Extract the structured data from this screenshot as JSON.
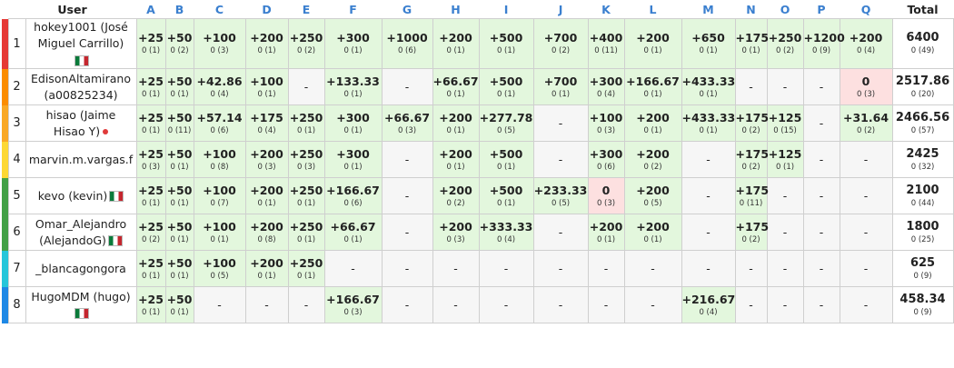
{
  "headers": {
    "user": "User",
    "problems": [
      "A",
      "B",
      "C",
      "D",
      "E",
      "F",
      "G",
      "H",
      "I",
      "J",
      "K",
      "L",
      "M",
      "N",
      "O",
      "P",
      "Q"
    ],
    "total": "Total"
  },
  "colors": {
    "stripes": [
      "#e53935",
      "#fb8c00",
      "#f9a825",
      "#fdd835",
      "#43a047",
      "#43a047",
      "#26c6da",
      "#1e88e5"
    ]
  },
  "rows": [
    {
      "rank": "1",
      "user_lines": [
        "hokey1001 (José",
        "Miguel Carrillo)"
      ],
      "badge": "mexico-flag",
      "cells": [
        {
          "p": "+25",
          "s": "0 (1)",
          "st": "ok"
        },
        {
          "p": "+50",
          "s": "0 (2)",
          "st": "ok"
        },
        {
          "p": "+100",
          "s": "0 (3)",
          "st": "ok"
        },
        {
          "p": "+200",
          "s": "0 (1)",
          "st": "ok"
        },
        {
          "p": "+250",
          "s": "0 (2)",
          "st": "ok"
        },
        {
          "p": "+300",
          "s": "0 (1)",
          "st": "ok"
        },
        {
          "p": "+1000",
          "s": "0 (6)",
          "st": "ok"
        },
        {
          "p": "+200",
          "s": "0 (1)",
          "st": "ok"
        },
        {
          "p": "+500",
          "s": "0 (1)",
          "st": "ok"
        },
        {
          "p": "+700",
          "s": "0 (2)",
          "st": "ok"
        },
        {
          "p": "+400",
          "s": "0 (11)",
          "st": "ok"
        },
        {
          "p": "+200",
          "s": "0 (1)",
          "st": "ok"
        },
        {
          "p": "+650",
          "s": "0 (1)",
          "st": "ok"
        },
        {
          "p": "+175",
          "s": "0 (1)",
          "st": "ok"
        },
        {
          "p": "+250",
          "s": "0 (2)",
          "st": "ok"
        },
        {
          "p": "+1200",
          "s": "0 (9)",
          "st": "ok"
        },
        {
          "p": "+200",
          "s": "0 (4)",
          "st": "ok"
        }
      ],
      "total": "6400",
      "total_sub": "0 (49)"
    },
    {
      "rank": "2",
      "user_lines": [
        "EdisonAltamirano",
        "(a00825234)"
      ],
      "badge": "",
      "cells": [
        {
          "p": "+25",
          "s": "0 (1)",
          "st": "ok"
        },
        {
          "p": "+50",
          "s": "0 (1)",
          "st": "ok"
        },
        {
          "p": "+42.86",
          "s": "0 (4)",
          "st": "ok"
        },
        {
          "p": "+100",
          "s": "0 (1)",
          "st": "ok"
        },
        {
          "p": "-",
          "s": "",
          "st": "none"
        },
        {
          "p": "+133.33",
          "s": "0 (1)",
          "st": "ok"
        },
        {
          "p": "-",
          "s": "",
          "st": "none"
        },
        {
          "p": "+66.67",
          "s": "0 (1)",
          "st": "ok"
        },
        {
          "p": "+500",
          "s": "0 (1)",
          "st": "ok"
        },
        {
          "p": "+700",
          "s": "0 (1)",
          "st": "ok"
        },
        {
          "p": "+300",
          "s": "0 (4)",
          "st": "ok"
        },
        {
          "p": "+166.67",
          "s": "0 (1)",
          "st": "ok"
        },
        {
          "p": "+433.33",
          "s": "0 (1)",
          "st": "ok"
        },
        {
          "p": "-",
          "s": "",
          "st": "none"
        },
        {
          "p": "-",
          "s": "",
          "st": "none"
        },
        {
          "p": "-",
          "s": "",
          "st": "none"
        },
        {
          "p": "0",
          "s": "0 (3)",
          "st": "bad"
        }
      ],
      "total": "2517.86",
      "total_sub": "0 (20)"
    },
    {
      "rank": "3",
      "user_lines": [
        "hisao (Jaime",
        "Hisao Y)"
      ],
      "badge": "red-dot",
      "cells": [
        {
          "p": "+25",
          "s": "0 (1)",
          "st": "ok"
        },
        {
          "p": "+50",
          "s": "0 (11)",
          "st": "ok"
        },
        {
          "p": "+57.14",
          "s": "0 (6)",
          "st": "ok"
        },
        {
          "p": "+175",
          "s": "0 (4)",
          "st": "ok"
        },
        {
          "p": "+250",
          "s": "0 (1)",
          "st": "ok"
        },
        {
          "p": "+300",
          "s": "0 (1)",
          "st": "ok"
        },
        {
          "p": "+66.67",
          "s": "0 (3)",
          "st": "ok"
        },
        {
          "p": "+200",
          "s": "0 (1)",
          "st": "ok"
        },
        {
          "p": "+277.78",
          "s": "0 (5)",
          "st": "ok"
        },
        {
          "p": "-",
          "s": "",
          "st": "none"
        },
        {
          "p": "+100",
          "s": "0 (3)",
          "st": "ok"
        },
        {
          "p": "+200",
          "s": "0 (1)",
          "st": "ok"
        },
        {
          "p": "+433.33",
          "s": "0 (1)",
          "st": "ok"
        },
        {
          "p": "+175",
          "s": "0 (2)",
          "st": "ok"
        },
        {
          "p": "+125",
          "s": "0 (15)",
          "st": "ok"
        },
        {
          "p": "-",
          "s": "",
          "st": "none"
        },
        {
          "p": "+31.64",
          "s": "0 (2)",
          "st": "ok"
        }
      ],
      "total": "2466.56",
      "total_sub": "0 (57)"
    },
    {
      "rank": "4",
      "user_lines": [
        "marvin.m.vargas.f"
      ],
      "badge": "",
      "cells": [
        {
          "p": "+25",
          "s": "0 (3)",
          "st": "ok"
        },
        {
          "p": "+50",
          "s": "0 (1)",
          "st": "ok"
        },
        {
          "p": "+100",
          "s": "0 (8)",
          "st": "ok"
        },
        {
          "p": "+200",
          "s": "0 (3)",
          "st": "ok"
        },
        {
          "p": "+250",
          "s": "0 (3)",
          "st": "ok"
        },
        {
          "p": "+300",
          "s": "0 (1)",
          "st": "ok"
        },
        {
          "p": "-",
          "s": "",
          "st": "none"
        },
        {
          "p": "+200",
          "s": "0 (1)",
          "st": "ok"
        },
        {
          "p": "+500",
          "s": "0 (1)",
          "st": "ok"
        },
        {
          "p": "-",
          "s": "",
          "st": "none"
        },
        {
          "p": "+300",
          "s": "0 (6)",
          "st": "ok"
        },
        {
          "p": "+200",
          "s": "0 (2)",
          "st": "ok"
        },
        {
          "p": "-",
          "s": "",
          "st": "none"
        },
        {
          "p": "+175",
          "s": "0 (2)",
          "st": "ok"
        },
        {
          "p": "+125",
          "s": "0 (1)",
          "st": "ok"
        },
        {
          "p": "-",
          "s": "",
          "st": "none"
        },
        {
          "p": "-",
          "s": "",
          "st": "none"
        }
      ],
      "total": "2425",
      "total_sub": "0 (32)"
    },
    {
      "rank": "5",
      "user_lines": [
        "kevo (kevin)"
      ],
      "badge": "mexico-flag",
      "cells": [
        {
          "p": "+25",
          "s": "0 (1)",
          "st": "ok"
        },
        {
          "p": "+50",
          "s": "0 (1)",
          "st": "ok"
        },
        {
          "p": "+100",
          "s": "0 (7)",
          "st": "ok"
        },
        {
          "p": "+200",
          "s": "0 (1)",
          "st": "ok"
        },
        {
          "p": "+250",
          "s": "0 (1)",
          "st": "ok"
        },
        {
          "p": "+166.67",
          "s": "0 (6)",
          "st": "ok"
        },
        {
          "p": "-",
          "s": "",
          "st": "none"
        },
        {
          "p": "+200",
          "s": "0 (2)",
          "st": "ok"
        },
        {
          "p": "+500",
          "s": "0 (1)",
          "st": "ok"
        },
        {
          "p": "+233.33",
          "s": "0 (5)",
          "st": "ok"
        },
        {
          "p": "0",
          "s": "0 (3)",
          "st": "bad"
        },
        {
          "p": "+200",
          "s": "0 (5)",
          "st": "ok"
        },
        {
          "p": "-",
          "s": "",
          "st": "none"
        },
        {
          "p": "+175",
          "s": "0 (11)",
          "st": "ok"
        },
        {
          "p": "-",
          "s": "",
          "st": "none"
        },
        {
          "p": "-",
          "s": "",
          "st": "none"
        },
        {
          "p": "-",
          "s": "",
          "st": "none"
        }
      ],
      "total": "2100",
      "total_sub": "0 (44)"
    },
    {
      "rank": "6",
      "user_lines": [
        "Omar_Alejandro",
        "(AlejandoG)"
      ],
      "badge": "mexico-flag",
      "cells": [
        {
          "p": "+25",
          "s": "0 (2)",
          "st": "ok"
        },
        {
          "p": "+50",
          "s": "0 (1)",
          "st": "ok"
        },
        {
          "p": "+100",
          "s": "0 (1)",
          "st": "ok"
        },
        {
          "p": "+200",
          "s": "0 (8)",
          "st": "ok"
        },
        {
          "p": "+250",
          "s": "0 (1)",
          "st": "ok"
        },
        {
          "p": "+66.67",
          "s": "0 (1)",
          "st": "ok"
        },
        {
          "p": "-",
          "s": "",
          "st": "none"
        },
        {
          "p": "+200",
          "s": "0 (3)",
          "st": "ok"
        },
        {
          "p": "+333.33",
          "s": "0 (4)",
          "st": "ok"
        },
        {
          "p": "-",
          "s": "",
          "st": "none"
        },
        {
          "p": "+200",
          "s": "0 (1)",
          "st": "ok"
        },
        {
          "p": "+200",
          "s": "0 (1)",
          "st": "ok"
        },
        {
          "p": "-",
          "s": "",
          "st": "none"
        },
        {
          "p": "+175",
          "s": "0 (2)",
          "st": "ok"
        },
        {
          "p": "-",
          "s": "",
          "st": "none"
        },
        {
          "p": "-",
          "s": "",
          "st": "none"
        },
        {
          "p": "-",
          "s": "",
          "st": "none"
        }
      ],
      "total": "1800",
      "total_sub": "0 (25)"
    },
    {
      "rank": "7",
      "user_lines": [
        "_blancagongora"
      ],
      "badge": "",
      "cells": [
        {
          "p": "+25",
          "s": "0 (1)",
          "st": "ok"
        },
        {
          "p": "+50",
          "s": "0 (1)",
          "st": "ok"
        },
        {
          "p": "+100",
          "s": "0 (5)",
          "st": "ok"
        },
        {
          "p": "+200",
          "s": "0 (1)",
          "st": "ok"
        },
        {
          "p": "+250",
          "s": "0 (1)",
          "st": "ok"
        },
        {
          "p": "-",
          "s": "",
          "st": "none"
        },
        {
          "p": "-",
          "s": "",
          "st": "none"
        },
        {
          "p": "-",
          "s": "",
          "st": "none"
        },
        {
          "p": "-",
          "s": "",
          "st": "none"
        },
        {
          "p": "-",
          "s": "",
          "st": "none"
        },
        {
          "p": "-",
          "s": "",
          "st": "none"
        },
        {
          "p": "-",
          "s": "",
          "st": "none"
        },
        {
          "p": "-",
          "s": "",
          "st": "none"
        },
        {
          "p": "-",
          "s": "",
          "st": "none"
        },
        {
          "p": "-",
          "s": "",
          "st": "none"
        },
        {
          "p": "-",
          "s": "",
          "st": "none"
        },
        {
          "p": "-",
          "s": "",
          "st": "none"
        }
      ],
      "total": "625",
      "total_sub": "0 (9)"
    },
    {
      "rank": "8",
      "user_lines": [
        "HugoMDM (hugo)"
      ],
      "badge": "mexico-flag-below",
      "cells": [
        {
          "p": "+25",
          "s": "0 (1)",
          "st": "ok"
        },
        {
          "p": "+50",
          "s": "0 (1)",
          "st": "ok"
        },
        {
          "p": "-",
          "s": "",
          "st": "none"
        },
        {
          "p": "-",
          "s": "",
          "st": "none"
        },
        {
          "p": "-",
          "s": "",
          "st": "none"
        },
        {
          "p": "+166.67",
          "s": "0 (3)",
          "st": "ok"
        },
        {
          "p": "-",
          "s": "",
          "st": "none"
        },
        {
          "p": "-",
          "s": "",
          "st": "none"
        },
        {
          "p": "-",
          "s": "",
          "st": "none"
        },
        {
          "p": "-",
          "s": "",
          "st": "none"
        },
        {
          "p": "-",
          "s": "",
          "st": "none"
        },
        {
          "p": "-",
          "s": "",
          "st": "none"
        },
        {
          "p": "+216.67",
          "s": "0 (4)",
          "st": "ok"
        },
        {
          "p": "-",
          "s": "",
          "st": "none"
        },
        {
          "p": "-",
          "s": "",
          "st": "none"
        },
        {
          "p": "-",
          "s": "",
          "st": "none"
        },
        {
          "p": "-",
          "s": "",
          "st": "none"
        }
      ],
      "total": "458.34",
      "total_sub": "0 (9)"
    }
  ]
}
